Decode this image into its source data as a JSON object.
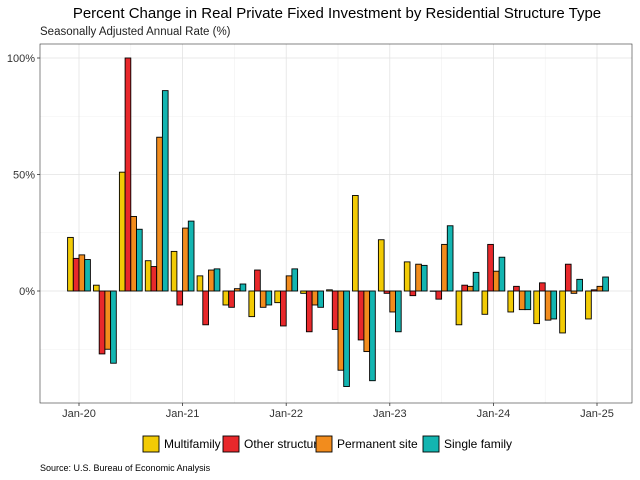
{
  "chart_data": {
    "type": "bar",
    "title": "Percent Change in Real Private Fixed Investment by Residential Structure Type",
    "subtitle": "Seasonally Adjusted Annual Rate (%)",
    "source": "Source: U.S. Bureau of Economic Analysis",
    "xlabel": "",
    "ylabel": "",
    "x_ticks": [
      "Jan-20",
      "Jan-21",
      "Jan-22",
      "Jan-23",
      "Jan-24",
      "Jan-25"
    ],
    "y_ticks": [
      "0%",
      "50%",
      "100%"
    ],
    "ylim": [
      -47,
      105
    ],
    "grid": true,
    "legend_position": "bottom",
    "categories": [
      "2020-01",
      "2020-04",
      "2020-07",
      "2020-10",
      "2021-01",
      "2021-04",
      "2021-07",
      "2021-10",
      "2022-01",
      "2022-04",
      "2022-07",
      "2022-10",
      "2023-01",
      "2023-04",
      "2023-07",
      "2023-10",
      "2024-01",
      "2024-04",
      "2024-07",
      "2024-10",
      "2025-01"
    ],
    "series": [
      {
        "name": "Multifamily",
        "color": "#F2CB05",
        "values": [
          23,
          2.5,
          51,
          13,
          17,
          6.5,
          -6,
          -11,
          -5,
          -1,
          0.5,
          41,
          22,
          12.5,
          0,
          -14.5,
          -10,
          -9,
          -14,
          -18,
          -12
        ]
      },
      {
        "name": "Other structures",
        "color": "#E8282B",
        "values": [
          14,
          -27,
          100,
          10.5,
          -6,
          -14.5,
          -7,
          9,
          -15,
          -17.5,
          -16.5,
          -21,
          -1,
          -2,
          -3.5,
          2.5,
          20,
          2,
          3.5,
          11.5,
          0.5
        ]
      },
      {
        "name": "Permanent site",
        "color": "#F28C1D",
        "values": [
          15.5,
          -25,
          32,
          66,
          27,
          9,
          1,
          -7,
          6.5,
          -6,
          -34,
          -26,
          -9,
          11.5,
          20,
          2,
          8.5,
          -8,
          -12.5,
          -1,
          2
        ]
      },
      {
        "name": "Single family",
        "color": "#13B5B1",
        "values": [
          13.5,
          -31,
          26.5,
          86,
          30,
          9.5,
          3,
          -6,
          9.5,
          -7,
          -41,
          -38.5,
          -17.5,
          11,
          28,
          8,
          14.5,
          -8,
          -12,
          5,
          6
        ]
      }
    ]
  }
}
